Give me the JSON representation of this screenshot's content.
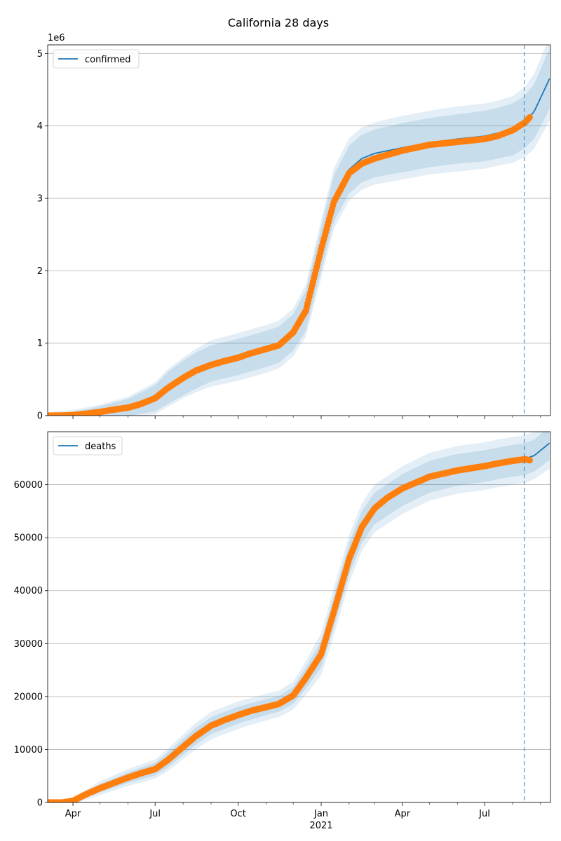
{
  "title": "California 28 days",
  "colors": {
    "model_line": "#1f77b4",
    "band": "#1f77b4",
    "observed": "#ff7f0e",
    "grid": "#b0b0b0",
    "vline": "#1f77b4"
  },
  "x_axis": {
    "tick_labels": [
      "Apr",
      "Jul",
      "Oct",
      "Jan",
      "Apr",
      "Jul"
    ],
    "year_label": "2021"
  },
  "chart_data": [
    {
      "type": "line",
      "legend": "confirmed",
      "legend_position": "upper-left",
      "grid": "horizontal",
      "offset_label": "1e6",
      "xlim": [
        "2020-03-04",
        "2021-09-12"
      ],
      "ylim": [
        0,
        5.12
      ],
      "yticks": [
        0,
        1,
        2,
        3,
        4,
        5
      ],
      "ytick_labels": [
        "0",
        "1",
        "2",
        "3",
        "4",
        "5"
      ],
      "forecast_start": "2021-08-14",
      "model": {
        "x": [
          "2020-03-04",
          "2020-04-01",
          "2020-05-01",
          "2020-06-01",
          "2020-07-01",
          "2020-07-15",
          "2020-08-01",
          "2020-08-15",
          "2020-09-01",
          "2020-10-01",
          "2020-11-01",
          "2020-11-15",
          "2020-12-01",
          "2020-12-15",
          "2021-01-01",
          "2021-01-15",
          "2021-02-01",
          "2021-02-15",
          "2021-03-01",
          "2021-04-01",
          "2021-05-01",
          "2021-06-01",
          "2021-07-01",
          "2021-07-15",
          "2021-08-01",
          "2021-08-14",
          "2021-08-25",
          "2021-09-12"
        ],
        "y": [
          0.004,
          0.008,
          0.05,
          0.11,
          0.24,
          0.38,
          0.52,
          0.62,
          0.72,
          0.81,
          0.92,
          0.98,
          1.15,
          1.45,
          2.3,
          3.0,
          3.4,
          3.55,
          3.62,
          3.7,
          3.77,
          3.82,
          3.86,
          3.9,
          3.95,
          4.05,
          4.2,
          4.68
        ],
        "inner": [
          0.02,
          0.04,
          0.08,
          0.12,
          0.18,
          0.22,
          0.24,
          0.25,
          0.25,
          0.25,
          0.25,
          0.25,
          0.25,
          0.28,
          0.3,
          0.32,
          0.33,
          0.33,
          0.33,
          0.34,
          0.34,
          0.34,
          0.35,
          0.35,
          0.36,
          0.36,
          0.38,
          0.42
        ],
        "outer": [
          0.04,
          0.07,
          0.1,
          0.15,
          0.22,
          0.26,
          0.28,
          0.3,
          0.32,
          0.33,
          0.33,
          0.33,
          0.33,
          0.36,
          0.4,
          0.42,
          0.43,
          0.43,
          0.43,
          0.44,
          0.44,
          0.45,
          0.45,
          0.45,
          0.46,
          0.48,
          0.52,
          0.58
        ]
      },
      "observed": {
        "x": [
          "2020-03-04",
          "2020-03-20",
          "2020-04-01",
          "2020-04-15",
          "2020-05-01",
          "2020-05-15",
          "2020-06-01",
          "2020-06-15",
          "2020-07-01",
          "2020-07-15",
          "2020-08-01",
          "2020-08-15",
          "2020-09-01",
          "2020-09-15",
          "2020-10-01",
          "2020-10-15",
          "2020-11-01",
          "2020-11-15",
          "2020-12-01",
          "2020-12-15",
          "2021-01-01",
          "2021-01-15",
          "2021-02-01",
          "2021-02-15",
          "2021-03-01",
          "2021-04-01",
          "2021-05-01",
          "2021-06-01",
          "2021-07-01",
          "2021-07-15",
          "2021-08-01",
          "2021-08-15",
          "2021-08-20"
        ],
        "y": [
          0.0,
          0.001,
          0.007,
          0.025,
          0.05,
          0.08,
          0.11,
          0.16,
          0.24,
          0.38,
          0.52,
          0.62,
          0.7,
          0.75,
          0.8,
          0.86,
          0.92,
          0.97,
          1.15,
          1.45,
          2.3,
          2.95,
          3.35,
          3.48,
          3.55,
          3.66,
          3.74,
          3.78,
          3.82,
          3.86,
          3.94,
          4.05,
          4.12
        ]
      }
    },
    {
      "type": "line",
      "legend": "deaths",
      "legend_position": "upper-left",
      "grid": "horizontal",
      "xlim": [
        "2020-03-04",
        "2021-09-12"
      ],
      "ylim": [
        0,
        70000
      ],
      "yticks": [
        0,
        10000,
        20000,
        30000,
        40000,
        50000,
        60000
      ],
      "ytick_labels": [
        "0",
        "10000",
        "20000",
        "30000",
        "40000",
        "50000",
        "60000"
      ],
      "forecast_start": "2021-08-14",
      "model": {
        "x": [
          "2020-03-04",
          "2020-04-01",
          "2020-05-01",
          "2020-06-01",
          "2020-07-01",
          "2020-07-15",
          "2020-08-01",
          "2020-08-15",
          "2020-09-01",
          "2020-10-01",
          "2020-11-01",
          "2020-11-15",
          "2020-12-01",
          "2020-12-15",
          "2021-01-01",
          "2021-01-15",
          "2021-02-01",
          "2021-02-15",
          "2021-03-01",
          "2021-04-01",
          "2021-05-01",
          "2021-06-01",
          "2021-07-01",
          "2021-07-15",
          "2021-08-01",
          "2021-08-14",
          "2021-08-25",
          "2021-09-12"
        ],
        "y": [
          0,
          300,
          2700,
          4700,
          6300,
          8000,
          10500,
          12500,
          14500,
          16500,
          18000,
          18600,
          20200,
          23500,
          28000,
          36000,
          46000,
          52000,
          55500,
          59000,
          61500,
          62800,
          63500,
          64000,
          64500,
          64800,
          65500,
          68000
        ],
        "inner": [
          0,
          300,
          800,
          1000,
          1200,
          1400,
          1500,
          1600,
          1600,
          1600,
          1500,
          1500,
          1600,
          2000,
          2500,
          3000,
          3000,
          3000,
          3000,
          3000,
          3000,
          3000,
          3000,
          3000,
          3000,
          3000,
          3000,
          3200
        ],
        "outer": [
          0,
          600,
          1300,
          1600,
          1800,
          2100,
          2300,
          2500,
          2600,
          2600,
          2500,
          2500,
          2600,
          3200,
          4000,
          4500,
          4500,
          4500,
          4500,
          4500,
          4500,
          4500,
          4500,
          4500,
          4500,
          4500,
          4500,
          4800
        ]
      },
      "observed": {
        "x": [
          "2020-03-04",
          "2020-03-20",
          "2020-04-01",
          "2020-04-15",
          "2020-05-01",
          "2020-05-15",
          "2020-06-01",
          "2020-06-15",
          "2020-07-01",
          "2020-07-15",
          "2020-08-01",
          "2020-08-15",
          "2020-09-01",
          "2020-09-15",
          "2020-10-01",
          "2020-10-15",
          "2020-11-01",
          "2020-11-15",
          "2020-12-01",
          "2020-12-15",
          "2021-01-01",
          "2021-01-15",
          "2021-02-01",
          "2021-02-15",
          "2021-03-01",
          "2021-03-15",
          "2021-04-01",
          "2021-05-01",
          "2021-06-01",
          "2021-07-01",
          "2021-07-15",
          "2021-08-01",
          "2021-08-15",
          "2021-08-20"
        ],
        "y": [
          0,
          0,
          300,
          1500,
          2700,
          3600,
          4700,
          5500,
          6300,
          8000,
          10500,
          12500,
          14500,
          15500,
          16500,
          17300,
          18000,
          18600,
          20200,
          23500,
          28000,
          36000,
          46000,
          52000,
          55500,
          57500,
          59300,
          61500,
          62700,
          63500,
          64000,
          64500,
          64800,
          64600
        ]
      }
    }
  ]
}
